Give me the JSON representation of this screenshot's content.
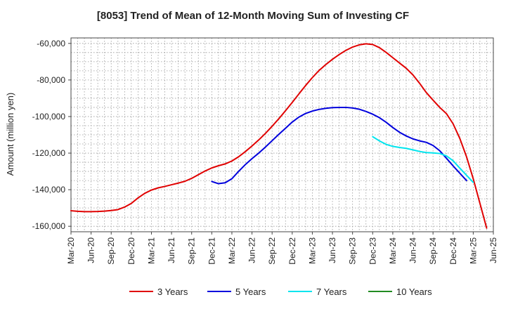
{
  "chart_data": {
    "type": "line",
    "title": "[8053]  Trend of Mean of 12-Month Moving Sum of Investing CF",
    "xlabel": "",
    "ylabel": "Amount (million yen)",
    "ylim": [
      -163000,
      -57000
    ],
    "yticks": [
      -60000,
      -80000,
      -100000,
      -120000,
      -140000,
      -160000
    ],
    "ytick_labels": [
      "-60,000",
      "-80,000",
      "-100,000",
      "-120,000",
      "-140,000",
      "-160,000"
    ],
    "xtick_labels": [
      "Mar-20",
      "Jun-20",
      "Sep-20",
      "Dec-20",
      "Mar-21",
      "Jun-21",
      "Sep-21",
      "Dec-21",
      "Mar-22",
      "Jun-22",
      "Sep-22",
      "Dec-22",
      "Mar-23",
      "Jun-23",
      "Sep-23",
      "Dec-23",
      "Mar-24",
      "Jun-24",
      "Sep-24",
      "Dec-24",
      "Mar-25",
      "Jun-25"
    ],
    "x_months_range": [
      0,
      63
    ],
    "grid": true,
    "legend_position": "bottom",
    "series": [
      {
        "name": "3 Years",
        "color": "#e00000",
        "points": [
          [
            0,
            -151500
          ],
          [
            1,
            -151800
          ],
          [
            2,
            -152000
          ],
          [
            3,
            -152000
          ],
          [
            4,
            -151900
          ],
          [
            5,
            -151700
          ],
          [
            6,
            -151400
          ],
          [
            7,
            -150900
          ],
          [
            8,
            -149500
          ],
          [
            9,
            -147500
          ],
          [
            10,
            -144500
          ],
          [
            11,
            -142000
          ],
          [
            12,
            -140200
          ],
          [
            13,
            -139000
          ],
          [
            14,
            -138200
          ],
          [
            15,
            -137300
          ],
          [
            16,
            -136400
          ],
          [
            17,
            -135400
          ],
          [
            18,
            -133800
          ],
          [
            19,
            -131800
          ],
          [
            20,
            -129800
          ],
          [
            21,
            -128100
          ],
          [
            22,
            -126900
          ],
          [
            23,
            -125900
          ],
          [
            24,
            -124300
          ],
          [
            25,
            -122000
          ],
          [
            26,
            -119200
          ],
          [
            27,
            -116100
          ],
          [
            28,
            -112800
          ],
          [
            29,
            -109200
          ],
          [
            30,
            -105300
          ],
          [
            31,
            -101200
          ],
          [
            32,
            -96800
          ],
          [
            33,
            -92300
          ],
          [
            34,
            -87600
          ],
          [
            35,
            -83000
          ],
          [
            36,
            -78700
          ],
          [
            37,
            -74800
          ],
          [
            38,
            -71600
          ],
          [
            39,
            -68700
          ],
          [
            40,
            -66100
          ],
          [
            41,
            -63800
          ],
          [
            42,
            -62000
          ],
          [
            43,
            -60800
          ],
          [
            44,
            -60200
          ],
          [
            45,
            -60600
          ],
          [
            46,
            -62300
          ],
          [
            47,
            -64900
          ],
          [
            48,
            -67800
          ],
          [
            49,
            -70700
          ],
          [
            50,
            -73600
          ],
          [
            51,
            -77200
          ],
          [
            52,
            -81800
          ],
          [
            53,
            -86900
          ],
          [
            54,
            -91000
          ],
          [
            55,
            -95000
          ],
          [
            56,
            -98400
          ],
          [
            57,
            -104000
          ],
          [
            58,
            -112000
          ],
          [
            59,
            -122000
          ],
          [
            60,
            -134000
          ],
          [
            61,
            -147500
          ],
          [
            62,
            -161000
          ]
        ]
      },
      {
        "name": "5 Years",
        "color": "#0000dd",
        "points": [
          [
            21,
            -135500
          ],
          [
            22,
            -136700
          ],
          [
            23,
            -136200
          ],
          [
            24,
            -134000
          ],
          [
            25,
            -130000
          ],
          [
            26,
            -126300
          ],
          [
            27,
            -123000
          ],
          [
            28,
            -120000
          ],
          [
            29,
            -116700
          ],
          [
            30,
            -113200
          ],
          [
            31,
            -109700
          ],
          [
            32,
            -106400
          ],
          [
            33,
            -103000
          ],
          [
            34,
            -100300
          ],
          [
            35,
            -98300
          ],
          [
            36,
            -97000
          ],
          [
            37,
            -96100
          ],
          [
            38,
            -95500
          ],
          [
            39,
            -95100
          ],
          [
            40,
            -95000
          ],
          [
            41,
            -95000
          ],
          [
            42,
            -95300
          ],
          [
            43,
            -96000
          ],
          [
            44,
            -97200
          ],
          [
            45,
            -98700
          ],
          [
            46,
            -100600
          ],
          [
            47,
            -103100
          ],
          [
            48,
            -106000
          ],
          [
            49,
            -108600
          ],
          [
            50,
            -110600
          ],
          [
            51,
            -112200
          ],
          [
            52,
            -113300
          ],
          [
            53,
            -114100
          ],
          [
            54,
            -115800
          ],
          [
            55,
            -118700
          ],
          [
            56,
            -122800
          ],
          [
            57,
            -127000
          ],
          [
            58,
            -131000
          ],
          [
            59,
            -135000
          ]
        ]
      },
      {
        "name": "7 Years",
        "color": "#00e5ee",
        "points": [
          [
            45,
            -111000
          ],
          [
            46,
            -113300
          ],
          [
            47,
            -115200
          ],
          [
            48,
            -116300
          ],
          [
            49,
            -116900
          ],
          [
            50,
            -117400
          ],
          [
            51,
            -118200
          ],
          [
            52,
            -119100
          ],
          [
            53,
            -119700
          ],
          [
            54,
            -119900
          ],
          [
            55,
            -120200
          ],
          [
            56,
            -121500
          ],
          [
            57,
            -124200
          ],
          [
            58,
            -128200
          ],
          [
            59,
            -132100
          ],
          [
            60,
            -136000
          ]
        ]
      },
      {
        "name": "10 Years",
        "color": "#228b22",
        "points": []
      }
    ]
  }
}
